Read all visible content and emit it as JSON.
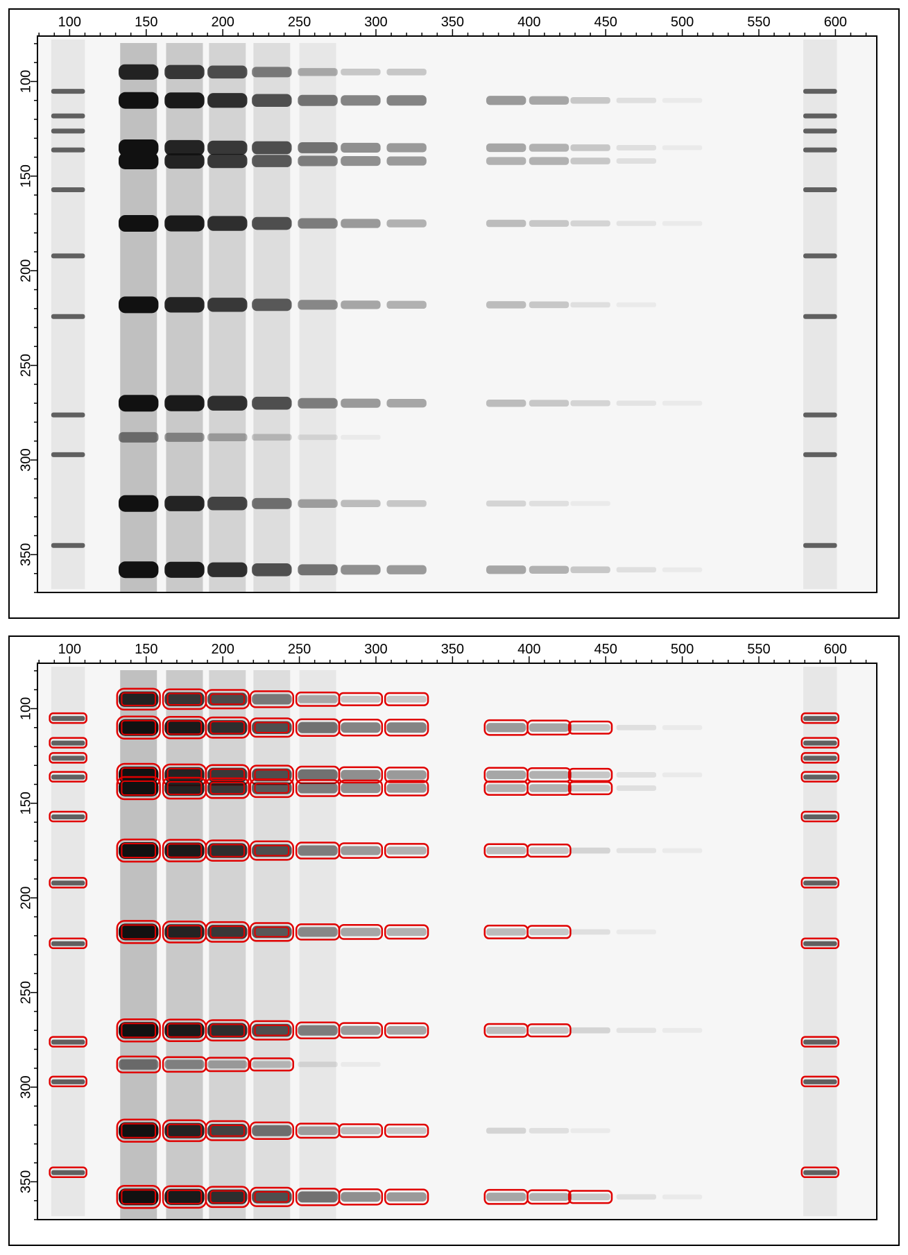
{
  "panels": [
    {
      "id": "top",
      "description_overlay": "none",
      "x_ticks": [
        "100",
        "150",
        "200",
        "250",
        "300",
        "350",
        "400",
        "450",
        "500",
        "550",
        "600"
      ],
      "y_ticks": [
        "100",
        "150",
        "200",
        "250",
        "300",
        "350"
      ]
    },
    {
      "id": "bottom",
      "description_overlay": "red-contours",
      "x_ticks": [
        "100",
        "150",
        "200",
        "250",
        "300",
        "350",
        "400",
        "450",
        "500",
        "550",
        "600"
      ],
      "y_ticks": [
        "100",
        "150",
        "200",
        "250",
        "300",
        "350"
      ]
    }
  ],
  "axes": {
    "x_range": [
      79,
      627
    ],
    "y_range": [
      76,
      370
    ],
    "x_tick_values": [
      100,
      150,
      200,
      250,
      300,
      350,
      400,
      450,
      500,
      550,
      600
    ],
    "y_tick_values": [
      100,
      150,
      200,
      250,
      300,
      350
    ]
  },
  "colors": {
    "gel_background": "#f6f6f6",
    "band_dark": "#111111",
    "contour": "#e00000",
    "frame": "#000000"
  }
}
